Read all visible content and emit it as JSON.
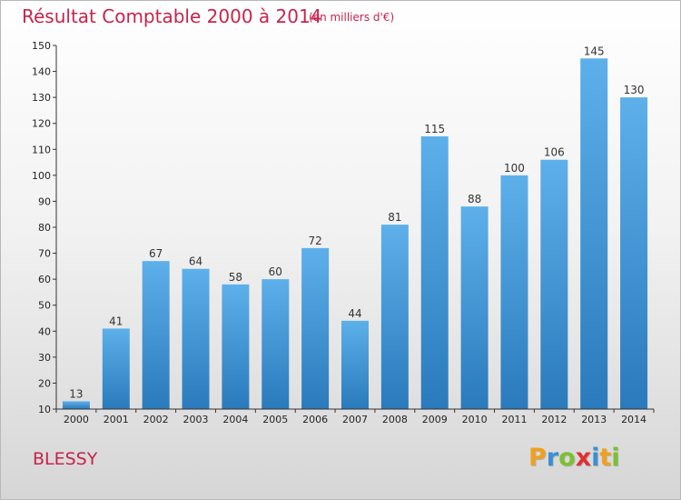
{
  "chart_data": {
    "type": "bar",
    "title": "Résultat Comptable 2000 à 2014",
    "subtitle": "(en milliers d'€)",
    "categories": [
      "2000",
      "2001",
      "2002",
      "2003",
      "2004",
      "2005",
      "2006",
      "2007",
      "2008",
      "2009",
      "2010",
      "2011",
      "2012",
      "2013",
      "2014"
    ],
    "values": [
      13,
      41,
      67,
      64,
      58,
      60,
      72,
      44,
      81,
      115,
      88,
      100,
      106,
      145,
      130
    ],
    "ylim": [
      10,
      150
    ],
    "yticks": [
      10,
      20,
      30,
      40,
      50,
      60,
      70,
      80,
      90,
      100,
      110,
      120,
      130,
      140,
      150
    ],
    "xlabel": "",
    "ylabel": "",
    "grid": false,
    "bar_color": "#3a96d9",
    "bar_color_dark": "#2a7abc"
  },
  "footer": {
    "commune": "BLESSY",
    "logo_letters": [
      "P",
      "r",
      "o",
      "x",
      "i",
      "t",
      "i"
    ],
    "logo_colors": [
      "#f0a020",
      "#3a8fd6",
      "#7cc030",
      "#e03030",
      "#3a8fd6",
      "#f0a020",
      "#7cc030"
    ]
  },
  "colors": {
    "title": "#c8234b"
  }
}
